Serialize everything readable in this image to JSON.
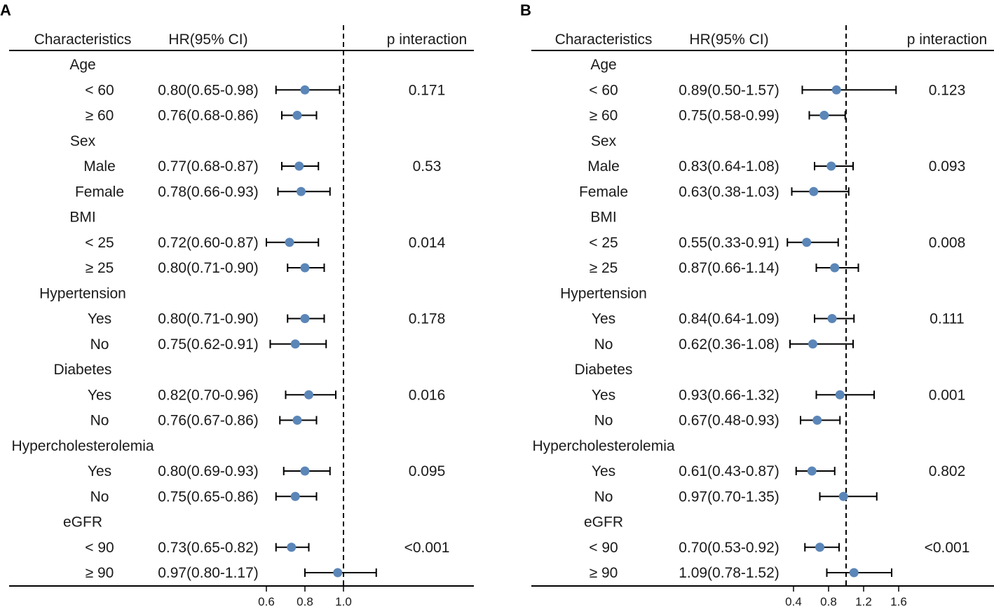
{
  "chart_data": [
    {
      "type": "forest",
      "panel_label": "A",
      "headers": {
        "characteristics": "Characteristics",
        "hr": "HR(95% CI)",
        "p": "p interaction"
      },
      "reference_value": 1.0,
      "x_ticks": [
        0.6,
        0.8,
        1.0
      ],
      "x_tick_labels": [
        "0.6",
        "0.8",
        "1.0"
      ],
      "xlim": [
        0.6,
        1.2
      ],
      "rows": [
        {
          "kind": "group",
          "label": "Age"
        },
        {
          "kind": "item",
          "label": "< 60",
          "hr_text": "0.80(0.65-0.98)",
          "hr": 0.8,
          "lo": 0.65,
          "hi": 0.98,
          "p": "0.171"
        },
        {
          "kind": "item",
          "label": "≥ 60",
          "hr_text": "0.76(0.68-0.86)",
          "hr": 0.76,
          "lo": 0.68,
          "hi": 0.86,
          "p": ""
        },
        {
          "kind": "group",
          "label": "Sex"
        },
        {
          "kind": "item",
          "label": "Male",
          "hr_text": "0.77(0.68-0.87)",
          "hr": 0.77,
          "lo": 0.68,
          "hi": 0.87,
          "p": "0.53"
        },
        {
          "kind": "item",
          "label": "Female",
          "hr_text": "0.78(0.66-0.93)",
          "hr": 0.78,
          "lo": 0.66,
          "hi": 0.93,
          "p": ""
        },
        {
          "kind": "group",
          "label": "BMI"
        },
        {
          "kind": "item",
          "label": "< 25",
          "hr_text": "0.72(0.60-0.87)",
          "hr": 0.72,
          "lo": 0.6,
          "hi": 0.87,
          "p": "0.014"
        },
        {
          "kind": "item",
          "label": "≥ 25",
          "hr_text": "0.80(0.71-0.90)",
          "hr": 0.8,
          "lo": 0.71,
          "hi": 0.9,
          "p": ""
        },
        {
          "kind": "group",
          "label": "Hypertension"
        },
        {
          "kind": "item",
          "label": "Yes",
          "hr_text": "0.80(0.71-0.90)",
          "hr": 0.8,
          "lo": 0.71,
          "hi": 0.9,
          "p": "0.178"
        },
        {
          "kind": "item",
          "label": "No",
          "hr_text": "0.75(0.62-0.91)",
          "hr": 0.75,
          "lo": 0.62,
          "hi": 0.91,
          "p": ""
        },
        {
          "kind": "group",
          "label": "Diabetes"
        },
        {
          "kind": "item",
          "label": "Yes",
          "hr_text": "0.82(0.70-0.96)",
          "hr": 0.82,
          "lo": 0.7,
          "hi": 0.96,
          "p": "0.016"
        },
        {
          "kind": "item",
          "label": "No",
          "hr_text": "0.76(0.67-0.86)",
          "hr": 0.76,
          "lo": 0.67,
          "hi": 0.86,
          "p": ""
        },
        {
          "kind": "group",
          "label": "Hypercholesterolemia"
        },
        {
          "kind": "item",
          "label": "Yes",
          "hr_text": "0.80(0.69-0.93)",
          "hr": 0.8,
          "lo": 0.69,
          "hi": 0.93,
          "p": "0.095"
        },
        {
          "kind": "item",
          "label": "No",
          "hr_text": "0.75(0.65-0.86)",
          "hr": 0.75,
          "lo": 0.65,
          "hi": 0.86,
          "p": ""
        },
        {
          "kind": "group",
          "label": "eGFR"
        },
        {
          "kind": "item",
          "label": "< 90",
          "hr_text": "0.73(0.65-0.82)",
          "hr": 0.73,
          "lo": 0.65,
          "hi": 0.82,
          "p": "<0.001"
        },
        {
          "kind": "item",
          "label": "≥ 90",
          "hr_text": "0.97(0.80-1.17)",
          "hr": 0.97,
          "lo": 0.8,
          "hi": 1.17,
          "p": ""
        }
      ]
    },
    {
      "type": "forest",
      "panel_label": "B",
      "headers": {
        "characteristics": "Characteristics",
        "hr": "HR(95% CI)",
        "p": "p interaction"
      },
      "reference_value": 1.0,
      "x_ticks": [
        0.4,
        0.8,
        1.2,
        1.6
      ],
      "x_tick_labels": [
        "0.4",
        "0.8",
        "1.2",
        "1.6"
      ],
      "xlim": [
        0.4,
        1.6
      ],
      "rows": [
        {
          "kind": "group",
          "label": "Age"
        },
        {
          "kind": "item",
          "label": "< 60",
          "hr_text": "0.89(0.50-1.57)",
          "hr": 0.89,
          "lo": 0.5,
          "hi": 1.57,
          "p": "0.123"
        },
        {
          "kind": "item",
          "label": "≥ 60",
          "hr_text": "0.75(0.58-0.99)",
          "hr": 0.75,
          "lo": 0.58,
          "hi": 0.99,
          "p": ""
        },
        {
          "kind": "group",
          "label": "Sex"
        },
        {
          "kind": "item",
          "label": "Male",
          "hr_text": "0.83(0.64-1.08)",
          "hr": 0.83,
          "lo": 0.64,
          "hi": 1.08,
          "p": "0.093"
        },
        {
          "kind": "item",
          "label": "Female",
          "hr_text": "0.63(0.38-1.03)",
          "hr": 0.63,
          "lo": 0.38,
          "hi": 1.03,
          "p": ""
        },
        {
          "kind": "group",
          "label": "BMI"
        },
        {
          "kind": "item",
          "label": "< 25",
          "hr_text": "0.55(0.33-0.91)",
          "hr": 0.55,
          "lo": 0.33,
          "hi": 0.91,
          "p": "0.008"
        },
        {
          "kind": "item",
          "label": "≥ 25",
          "hr_text": "0.87(0.66-1.14)",
          "hr": 0.87,
          "lo": 0.66,
          "hi": 1.14,
          "p": ""
        },
        {
          "kind": "group",
          "label": "Hypertension"
        },
        {
          "kind": "item",
          "label": "Yes",
          "hr_text": "0.84(0.64-1.09)",
          "hr": 0.84,
          "lo": 0.64,
          "hi": 1.09,
          "p": "0.111"
        },
        {
          "kind": "item",
          "label": "No",
          "hr_text": "0.62(0.36-1.08)",
          "hr": 0.62,
          "lo": 0.36,
          "hi": 1.08,
          "p": ""
        },
        {
          "kind": "group",
          "label": "Diabetes"
        },
        {
          "kind": "item",
          "label": "Yes",
          "hr_text": "0.93(0.66-1.32)",
          "hr": 0.93,
          "lo": 0.66,
          "hi": 1.32,
          "p": "0.001"
        },
        {
          "kind": "item",
          "label": "No",
          "hr_text": "0.67(0.48-0.93)",
          "hr": 0.67,
          "lo": 0.48,
          "hi": 0.93,
          "p": ""
        },
        {
          "kind": "group",
          "label": "Hypercholesterolemia"
        },
        {
          "kind": "item",
          "label": "Yes",
          "hr_text": "0.61(0.43-0.87)",
          "hr": 0.61,
          "lo": 0.43,
          "hi": 0.87,
          "p": "0.802"
        },
        {
          "kind": "item",
          "label": "No",
          "hr_text": "0.97(0.70-1.35)",
          "hr": 0.97,
          "lo": 0.7,
          "hi": 1.35,
          "p": ""
        },
        {
          "kind": "group",
          "label": "eGFR"
        },
        {
          "kind": "item",
          "label": "< 90",
          "hr_text": "0.70(0.53-0.92)",
          "hr": 0.7,
          "lo": 0.53,
          "hi": 0.92,
          "p": "<0.001"
        },
        {
          "kind": "item",
          "label": "≥ 90",
          "hr_text": "1.09(0.78-1.52)",
          "hr": 1.09,
          "lo": 0.78,
          "hi": 1.52,
          "p": ""
        }
      ]
    }
  ],
  "colors": {
    "point": "#5b86b8",
    "line": "#000000",
    "text": "#1a1a1a"
  }
}
